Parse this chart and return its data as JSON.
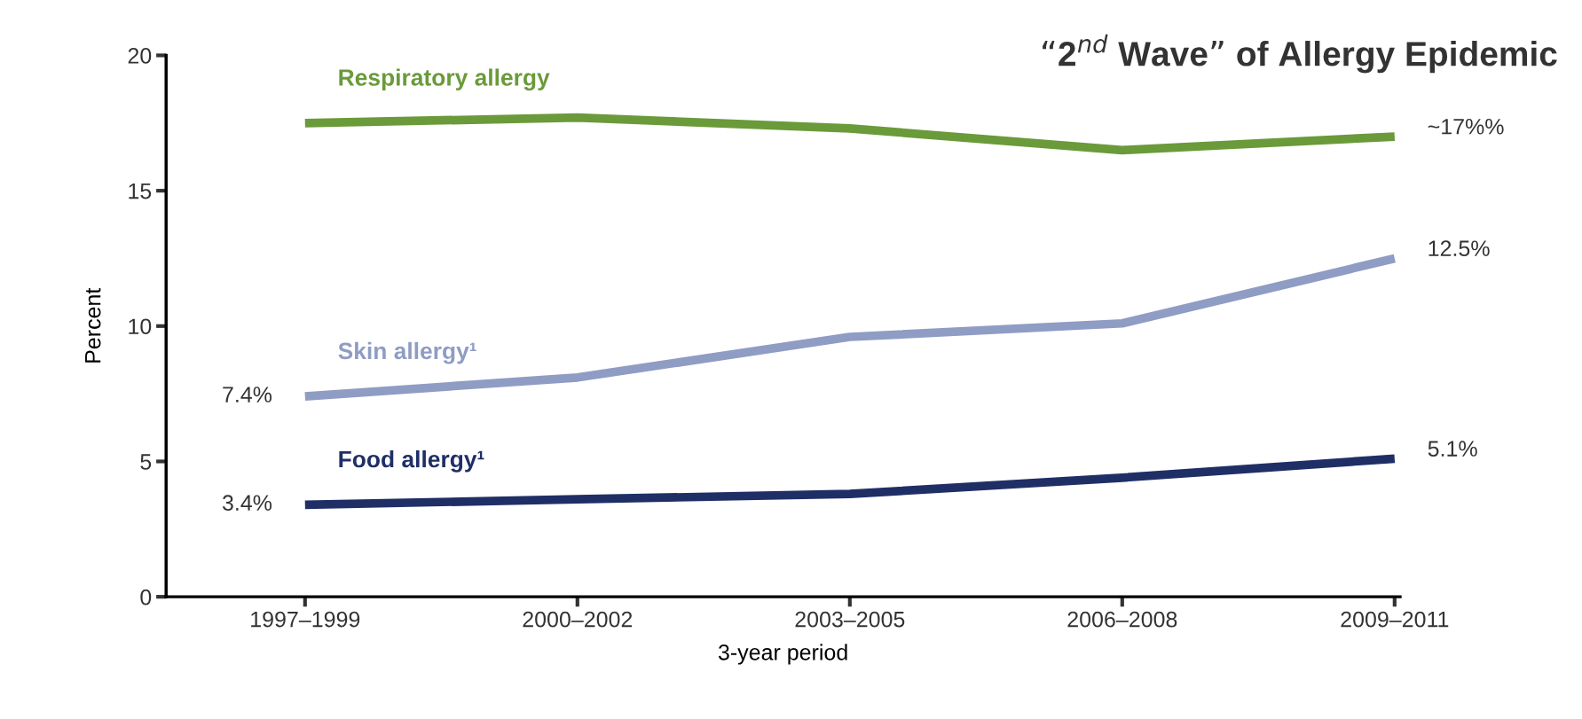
{
  "chart_data": {
    "type": "line",
    "title": "“2$^{nd}$ Wave” of Allergy Epidemic",
    "xlabel": "3-year period",
    "ylabel": "Percent",
    "categories": [
      "1997–1999",
      "2000–2002",
      "2003–2005",
      "2006–2008",
      "2009–2011"
    ],
    "series": [
      {
        "name": "Respiratory allergy",
        "color": "#6a9a3a",
        "values": [
          17.5,
          17.7,
          17.3,
          16.5,
          17.0
        ],
        "value_labels": [
          null,
          null,
          null,
          null,
          "~17%%"
        ]
      },
      {
        "name": "Skin allergy¹",
        "color": "#8f9cc4",
        "values": [
          7.4,
          8.1,
          9.6,
          10.1,
          12.5
        ],
        "value_labels": [
          "7.4%",
          null,
          null,
          null,
          "12.5%"
        ]
      },
      {
        "name": "Food allergy¹",
        "color": "#1f2f66",
        "values": [
          3.4,
          3.6,
          3.8,
          4.4,
          5.1
        ],
        "value_labels": [
          "3.4%",
          null,
          null,
          null,
          "5.1%"
        ]
      }
    ],
    "ylim": [
      0,
      20
    ],
    "yticks": [
      0,
      5,
      10,
      15,
      20
    ],
    "grid": false,
    "legend": false,
    "marker": "none",
    "line_style": "solid"
  }
}
